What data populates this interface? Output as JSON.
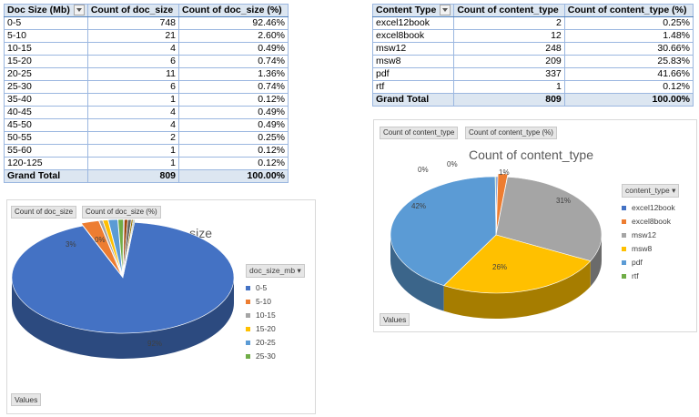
{
  "doc_size_table": {
    "headers": [
      "Doc Size (Mb)",
      "Count of doc_size",
      "Count of doc_size (%)"
    ],
    "rows": [
      [
        "0-5",
        "748",
        "92.46%"
      ],
      [
        "5-10",
        "21",
        "2.60%"
      ],
      [
        "10-15",
        "4",
        "0.49%"
      ],
      [
        "15-20",
        "6",
        "0.74%"
      ],
      [
        "20-25",
        "11",
        "1.36%"
      ],
      [
        "25-30",
        "6",
        "0.74%"
      ],
      [
        "35-40",
        "1",
        "0.12%"
      ],
      [
        "40-45",
        "4",
        "0.49%"
      ],
      [
        "45-50",
        "4",
        "0.49%"
      ],
      [
        "50-55",
        "2",
        "0.25%"
      ],
      [
        "55-60",
        "1",
        "0.12%"
      ],
      [
        "120-125",
        "1",
        "0.12%"
      ]
    ],
    "total": [
      "Grand Total",
      "809",
      "100.00%"
    ]
  },
  "content_type_table": {
    "headers": [
      "Content Type",
      "Count of content_type",
      "Count of content_type (%)"
    ],
    "rows": [
      [
        "excel12book",
        "2",
        "0.25%"
      ],
      [
        "excel8book",
        "12",
        "1.48%"
      ],
      [
        "msw12",
        "248",
        "30.66%"
      ],
      [
        "msw8",
        "209",
        "25.83%"
      ],
      [
        "pdf",
        "337",
        "41.66%"
      ],
      [
        "rtf",
        "1",
        "0.12%"
      ]
    ],
    "total": [
      "Grand Total",
      "809",
      "100.00%"
    ]
  },
  "doc_chart": {
    "field_buttons": [
      "Count of doc_size",
      "Count of doc_size (%)"
    ],
    "values_button": "Values",
    "legend_header": "doc_size_mb",
    "legend_items": [
      "0-5",
      "5-10",
      "10-15",
      "15-20",
      "20-25",
      "25-30"
    ],
    "legend_colors": [
      "#4472c4",
      "#ed7d31",
      "#a5a5a5",
      "#ffc000",
      "#5b9bd5",
      "#70ad47"
    ],
    "labels": {
      "big": "92%",
      "second": "3%",
      "small": "0%"
    }
  },
  "content_chart": {
    "field_buttons": [
      "Count of content_type",
      "Count of content_type (%)"
    ],
    "values_button": "Values",
    "legend_header": "content_type",
    "legend_items": [
      "excel12book",
      "excel8book",
      "msw12",
      "msw8",
      "pdf",
      "rtf"
    ],
    "legend_colors": [
      "#4472c4",
      "#ed7d31",
      "#a5a5a5",
      "#ffc000",
      "#5b9bd5",
      "#70ad47"
    ],
    "labels": {
      "pdf": "42%",
      "msw12": "31%",
      "msw8": "26%",
      "excel8book": "1%",
      "excel12book": "0%",
      "rtf": "0%"
    }
  },
  "chart_data": [
    {
      "type": "pie",
      "title": "Count of doc_size",
      "categories": [
        "0-5",
        "5-10",
        "10-15",
        "15-20",
        "20-25",
        "25-30",
        "35-40",
        "40-45",
        "45-50",
        "50-55",
        "55-60",
        "120-125"
      ],
      "values": [
        748,
        21,
        4,
        6,
        11,
        6,
        1,
        4,
        4,
        2,
        1,
        1
      ],
      "legend": "right"
    },
    {
      "type": "pie",
      "title": "Count of content_type",
      "categories": [
        "excel12book",
        "excel8book",
        "msw12",
        "msw8",
        "pdf",
        "rtf"
      ],
      "values": [
        2,
        12,
        248,
        209,
        337,
        1
      ],
      "legend": "right"
    }
  ]
}
